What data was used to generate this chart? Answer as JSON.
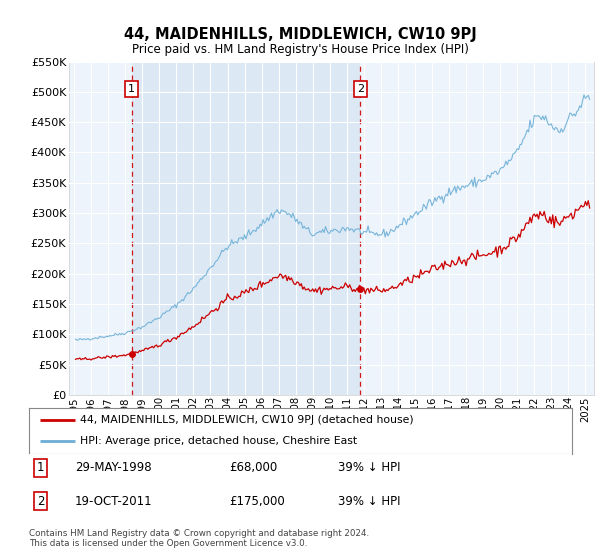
{
  "title": "44, MAIDENHILLS, MIDDLEWICH, CW10 9PJ",
  "subtitle": "Price paid vs. HM Land Registry's House Price Index (HPI)",
  "hpi_label": "HPI: Average price, detached house, Cheshire East",
  "property_label": "44, MAIDENHILLS, MIDDLEWICH, CW10 9PJ (detached house)",
  "annotation1": {
    "num": "1",
    "date": "29-MAY-1998",
    "price": "£68,000",
    "pct": "39% ↓ HPI"
  },
  "annotation2": {
    "num": "2",
    "date": "19-OCT-2011",
    "price": "£175,000",
    "pct": "39% ↓ HPI"
  },
  "sale1_year": 1998.38,
  "sale1_price": 68000,
  "sale2_year": 2011.8,
  "sale2_price": 175000,
  "hpi_color": "#6baed6",
  "property_color": "#cc0000",
  "vline_color": "#cc0000",
  "plot_bg_color": "#eef4fb",
  "highlight_bg_color": "#dce9f5",
  "ylim": [
    0,
    550000
  ],
  "xlim_start": 1994.7,
  "xlim_end": 2025.5,
  "footer": "Contains HM Land Registry data © Crown copyright and database right 2024.\nThis data is licensed under the Open Government Licence v3.0.",
  "annotation_box_color": "#cc0000",
  "yticks": [
    0,
    50000,
    100000,
    150000,
    200000,
    250000,
    300000,
    350000,
    400000,
    450000,
    500000,
    550000
  ]
}
